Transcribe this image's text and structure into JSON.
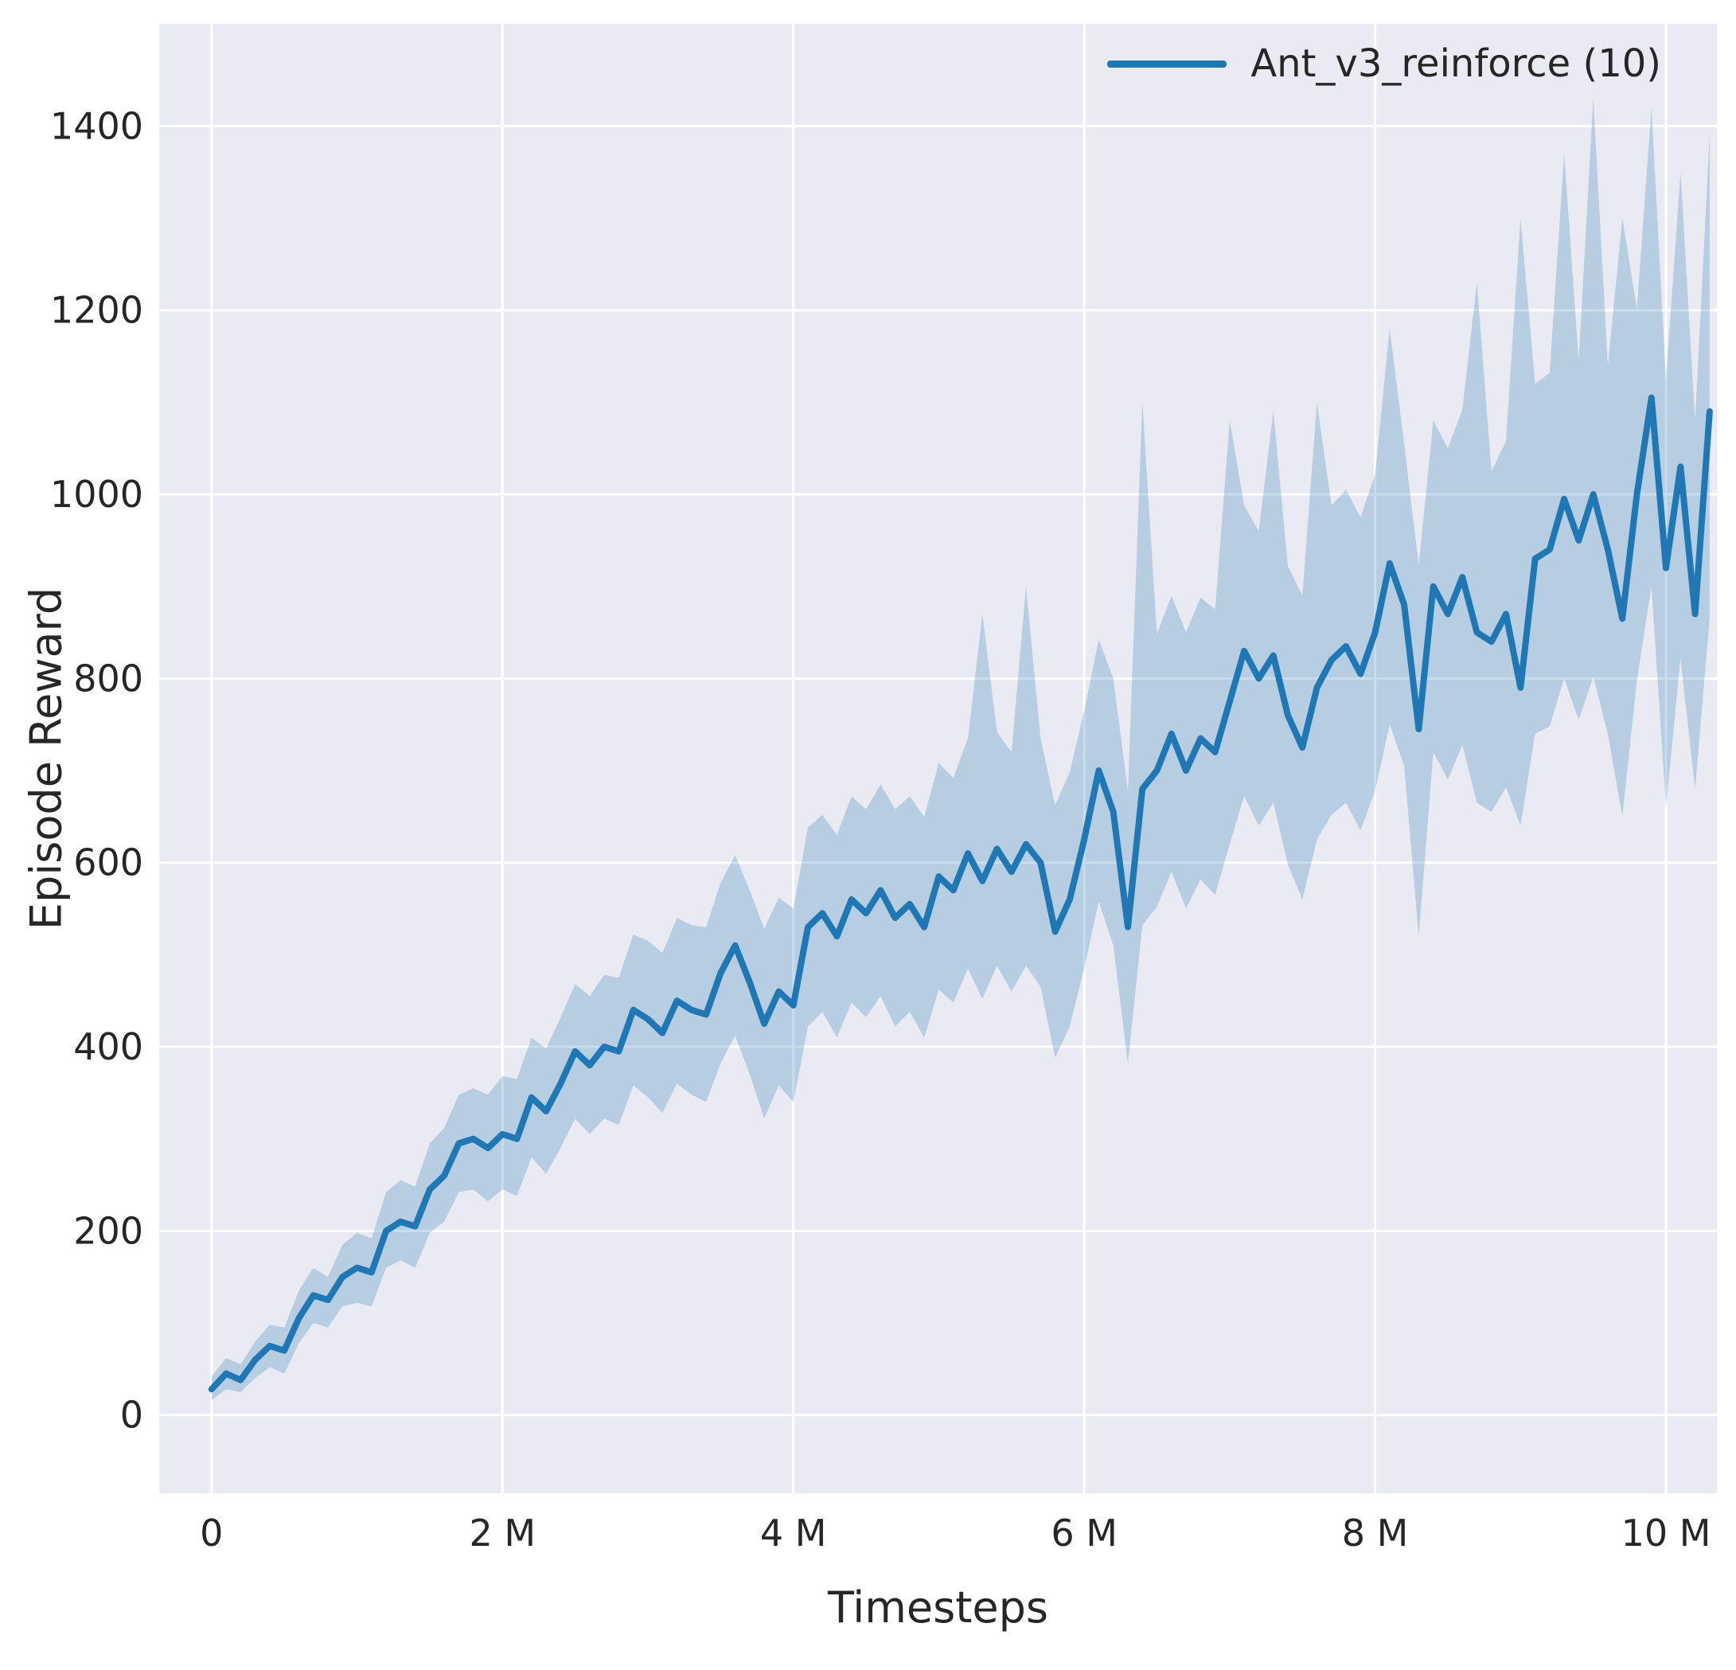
{
  "colors": {
    "figure_background": "#ffffff",
    "axes_background": "#eaeaf2",
    "grid": "#ffffff",
    "text": "#262626",
    "line": "#1f77b4",
    "band": "rgba(31,119,180,0.25)"
  },
  "chart_data": {
    "type": "line",
    "title": "",
    "xlabel": "Timesteps",
    "ylabel": "Episode Reward",
    "grid": true,
    "legend_position": "upper right",
    "xlim_millions": [
      -0.36,
      10.35
    ],
    "ylim": [
      -85,
      1511
    ],
    "x_ticks": {
      "values": [
        0,
        2,
        4,
        6,
        8,
        10
      ],
      "labels": [
        "0",
        "2 M",
        "4 M",
        "6 M",
        "8 M",
        "10 M"
      ]
    },
    "y_ticks": {
      "values": [
        0,
        200,
        400,
        600,
        800,
        1000,
        1200,
        1400
      ],
      "labels": [
        "0",
        "200",
        "400",
        "600",
        "800",
        "1000",
        "1200",
        "1400"
      ]
    },
    "series": [
      {
        "name": "Ant_v3_reinforce (10)",
        "color": "#1f77b4",
        "band_color": "rgba(31,119,180,0.25)",
        "x_millions": [
          0,
          0.1,
          0.2,
          0.3,
          0.4,
          0.5,
          0.6,
          0.7,
          0.8,
          0.9,
          1,
          1.1,
          1.2,
          1.3,
          1.4,
          1.5,
          1.6,
          1.7,
          1.8,
          1.9,
          2,
          2.1,
          2.2,
          2.3,
          2.4,
          2.5,
          2.6,
          2.7,
          2.8,
          2.9,
          3,
          3.1,
          3.2,
          3.3,
          3.4,
          3.5,
          3.6,
          3.7,
          3.8,
          3.9,
          4,
          4.1,
          4.2,
          4.3,
          4.4,
          4.5,
          4.6,
          4.7,
          4.8,
          4.9,
          5,
          5.1,
          5.2,
          5.3,
          5.4,
          5.5,
          5.6,
          5.7,
          5.8,
          5.9,
          6,
          6.1,
          6.2,
          6.3,
          6.4,
          6.5,
          6.6,
          6.7,
          6.8,
          6.9,
          7,
          7.1,
          7.2,
          7.3,
          7.4,
          7.5,
          7.6,
          7.7,
          7.8,
          7.9,
          8,
          8.1,
          8.2,
          8.3,
          8.4,
          8.5,
          8.6,
          8.7,
          8.8,
          8.9,
          9,
          9.1,
          9.2,
          9.3,
          9.4,
          9.5,
          9.6,
          9.7,
          9.8,
          9.9,
          10,
          10.1,
          10.2,
          10.3
        ],
        "mean": [
          28,
          45,
          38,
          60,
          75,
          70,
          105,
          130,
          125,
          150,
          160,
          155,
          200,
          210,
          205,
          245,
          260,
          295,
          300,
          290,
          305,
          300,
          345,
          330,
          360,
          395,
          380,
          400,
          395,
          440,
          430,
          415,
          450,
          440,
          435,
          480,
          510,
          470,
          425,
          460,
          445,
          530,
          545,
          520,
          560,
          545,
          570,
          540,
          555,
          530,
          585,
          570,
          610,
          580,
          615,
          590,
          620,
          600,
          525,
          560,
          625,
          700,
          655,
          530,
          680,
          700,
          740,
          700,
          735,
          720,
          775,
          830,
          800,
          825,
          760,
          725,
          790,
          820,
          835,
          805,
          850,
          925,
          880,
          745,
          900,
          870,
          910,
          850,
          840,
          870,
          790,
          930,
          940,
          995,
          950,
          1000,
          940,
          865,
          1000,
          1105,
          920,
          1030,
          870,
          1090
        ],
        "band_lower": [
          16,
          28,
          25,
          40,
          52,
          45,
          78,
          100,
          95,
          118,
          122,
          118,
          160,
          168,
          160,
          198,
          210,
          242,
          245,
          232,
          245,
          238,
          280,
          262,
          290,
          322,
          305,
          322,
          315,
          358,
          345,
          328,
          360,
          348,
          340,
          382,
          412,
          370,
          322,
          358,
          340,
          422,
          438,
          410,
          448,
          432,
          455,
          422,
          438,
          410,
          462,
          448,
          485,
          452,
          488,
          460,
          488,
          465,
          388,
          422,
          485,
          558,
          510,
          382,
          532,
          552,
          590,
          550,
          582,
          565,
          620,
          672,
          640,
          665,
          598,
          560,
          625,
          652,
          665,
          635,
          678,
          750,
          705,
          520,
          720,
          690,
          728,
          665,
          655,
          682,
          640,
          740,
          748,
          800,
          755,
          802,
          740,
          650,
          798,
          900,
          660,
          822,
          680,
          865
        ],
        "band_upper": [
          42,
          62,
          55,
          80,
          98,
          95,
          135,
          160,
          150,
          185,
          198,
          192,
          242,
          255,
          248,
          295,
          312,
          348,
          355,
          348,
          368,
          365,
          410,
          398,
          432,
          468,
          455,
          478,
          475,
          522,
          515,
          502,
          540,
          532,
          530,
          578,
          608,
          570,
          528,
          562,
          550,
          638,
          652,
          630,
          672,
          658,
          685,
          658,
          672,
          650,
          708,
          692,
          735,
          870,
          742,
          720,
          900,
          735,
          662,
          698,
          765,
          842,
          800,
          678,
          1100,
          848,
          890,
          850,
          888,
          875,
          1080,
          988,
          960,
          1090,
          922,
          890,
          1100,
          988,
          1005,
          975,
          1022,
          1180,
          1055,
          923,
          1080,
          1050,
          1092,
          1230,
          1025,
          1058,
          1300,
          1120,
          1132,
          1370,
          1145,
          1430,
          1140,
          1300,
          1202,
          1420,
          1125,
          1350,
          1080,
          1390
        ]
      }
    ]
  }
}
